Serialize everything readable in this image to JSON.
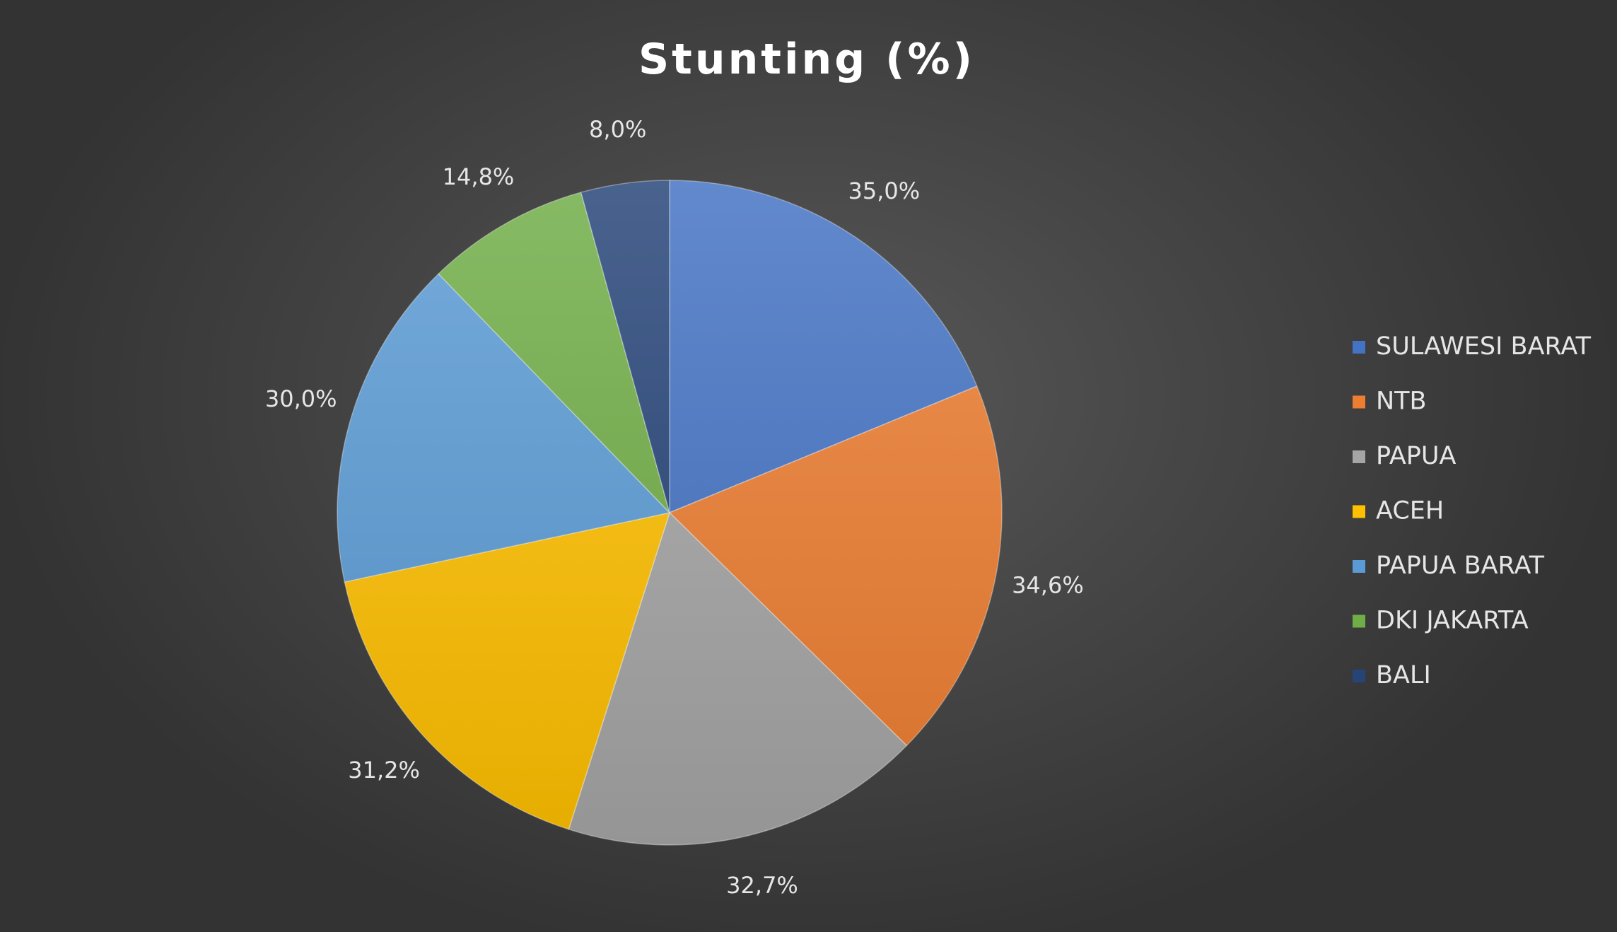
{
  "chart_data": {
    "type": "pie",
    "title": "Stunting (%)",
    "categories": [
      "SULAWESI BARAT",
      "NTB",
      "PAPUA",
      "ACEH",
      "PAPUA BARAT",
      "DKI JAKARTA",
      "BALI"
    ],
    "values": [
      35.0,
      34.6,
      32.7,
      31.2,
      30.0,
      14.8,
      8.0
    ],
    "data_labels": [
      "35,0%",
      "34,6%",
      "32,7%",
      "31,2%",
      "30,0%",
      "14,8%",
      "8,0%"
    ],
    "colors": [
      "#4472c4",
      "#ed7d31",
      "#a5a5a5",
      "#ffc000",
      "#5b9bd5",
      "#70ad47",
      "#264478"
    ],
    "legend_position": "right",
    "start_angle": "12 o'clock",
    "direction": "clockwise"
  }
}
